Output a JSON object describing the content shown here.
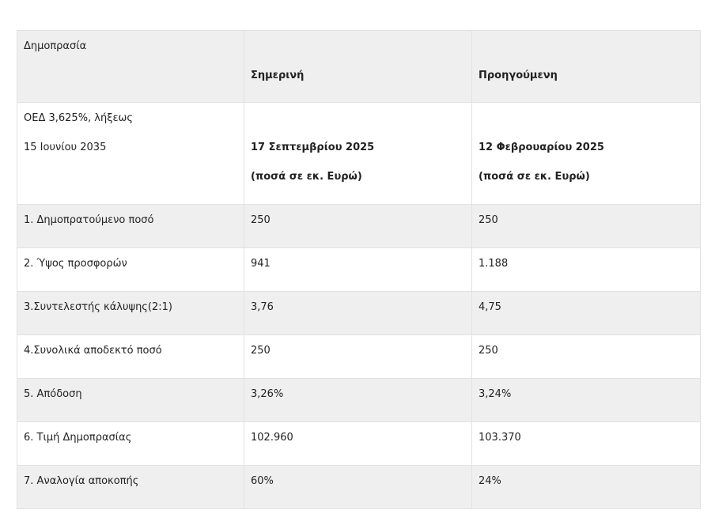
{
  "table": {
    "header": {
      "col1": "Δημοπρασία",
      "col2": "Σημερινή",
      "col3": "Προηγούμενη"
    },
    "subheader": {
      "col1_line1": "ΟΕΔ 3,625%, λήξεως",
      "col1_line2": "15 Ιουνίου 2035",
      "col2_date": "17 Σεπτεμβρίου 2025",
      "col2_unit": "(ποσά σε εκ. Ευρώ)",
      "col3_date": "12 Φεβρουαρίου 2025",
      "col3_unit": "(ποσά σε εκ. Ευρώ)"
    },
    "rows": [
      {
        "label": "1. Δημοπρατούμενο ποσό",
        "current": "250",
        "previous": "250"
      },
      {
        "label": "2. Ύψος προσφορών",
        "current": "941",
        "previous": "1.188"
      },
      {
        "label": "3.Συντελεστής κάλυψης(2:1)",
        "current": "3,76",
        "previous": "4,75"
      },
      {
        "label": "4.Συνολικά αποδεκτό ποσό",
        "current": "250",
        "previous": "250"
      },
      {
        "label": "5. Απόδοση",
        "current": "3,26%",
        "previous": "3,24%"
      },
      {
        "label": "6. Τιμή Δημοπρασίας",
        "current": "102.960",
        "previous": "103.370"
      },
      {
        "label": "7. Αναλογία αποκοπής",
        "current": "60%",
        "previous": "24%"
      }
    ]
  }
}
